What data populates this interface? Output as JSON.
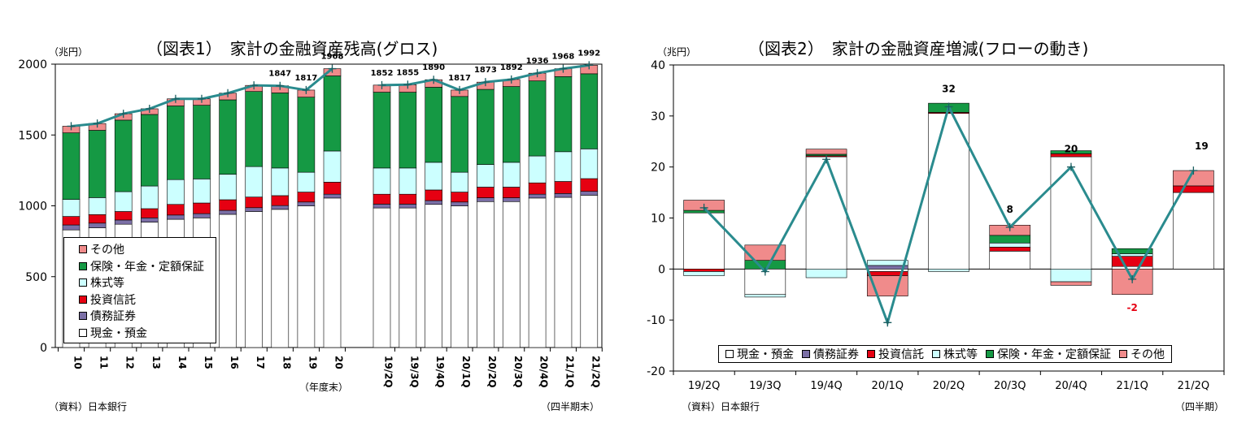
{
  "colors": {
    "cash": "#ffffff",
    "bonds": "#7b6fa6",
    "trusts": "#e60012",
    "stocks": "#ccffff",
    "insurance": "#159944",
    "other": "#f08b8b",
    "line": "#2a8b8e"
  },
  "chart_data": [
    {
      "type": "bar",
      "title": "（図表1）　家計の金融資産残高(グロス)",
      "unit_label": "（兆円）",
      "ylim": [
        0,
        2000
      ],
      "yticks": [
        "0",
        "500",
        "1000",
        "1500",
        "2000"
      ],
      "group_labels": [
        "（年度末）",
        "（四半期末）"
      ],
      "source": "（資料）日本銀行",
      "legend": [
        "その他",
        "保険・年金・定額保証",
        "株式等",
        "投資信託",
        "債務証券",
        "現金・預金"
      ],
      "legend_position": "bottom-left",
      "categories": [
        "10",
        "11",
        "12",
        "13",
        "14",
        "15",
        "16",
        "17",
        "18",
        "19",
        "20",
        "19/2Q",
        "19/3Q",
        "19/4Q",
        "20/1Q",
        "20/2Q",
        "20/3Q",
        "20/4Q",
        "21/1Q",
        "21/2Q"
      ],
      "series": [
        {
          "name": "現金・預金",
          "key": "cash",
          "values": [
            830,
            845,
            870,
            885,
            905,
            915,
            940,
            960,
            975,
            1000,
            1055,
            985,
            985,
            1010,
            1000,
            1030,
            1030,
            1055,
            1060,
            1075
          ]
        },
        {
          "name": "債務証券",
          "key": "bonds",
          "values": [
            35,
            33,
            30,
            30,
            30,
            30,
            28,
            27,
            27,
            27,
            27,
            27,
            27,
            27,
            27,
            27,
            27,
            27,
            27,
            27
          ]
        },
        {
          "name": "投資信託",
          "key": "trusts",
          "values": [
            60,
            60,
            60,
            65,
            75,
            75,
            75,
            75,
            70,
            70,
            85,
            70,
            70,
            75,
            70,
            75,
            75,
            80,
            85,
            90
          ]
        },
        {
          "name": "株式等",
          "key": "stocks",
          "values": [
            120,
            120,
            140,
            160,
            175,
            170,
            180,
            215,
            195,
            140,
            220,
            185,
            185,
            195,
            140,
            160,
            175,
            190,
            210,
            210
          ]
        },
        {
          "name": "保険・年金・定額保証",
          "key": "insurance",
          "values": [
            470,
            475,
            505,
            505,
            520,
            520,
            525,
            530,
            530,
            530,
            530,
            535,
            535,
            530,
            535,
            530,
            535,
            530,
            530,
            530
          ]
        },
        {
          "name": "その他",
          "key": "other",
          "values": [
            47,
            48,
            45,
            40,
            50,
            45,
            47,
            43,
            50,
            50,
            51,
            50,
            53,
            53,
            45,
            51,
            50,
            54,
            56,
            60
          ]
        }
      ],
      "line_totals": [
        1562,
        1581,
        1650,
        1685,
        1755,
        1755,
        1795,
        1850,
        1847,
        1817,
        1968,
        1852,
        1855,
        1890,
        1817,
        1873,
        1892,
        1936,
        1968,
        1992
      ],
      "data_labels": {
        "8": "1847",
        "9": "1817",
        "10": "1968",
        "11": "1852",
        "12": "1855",
        "13": "1890",
        "14": "1817",
        "15": "1873",
        "16": "1892",
        "17": "1936",
        "18": "1968",
        "19": "1992"
      }
    },
    {
      "type": "bar",
      "title": "（図表2）　家計の金融資産増減(フローの動き)",
      "unit_label": "（兆円）",
      "ylim": [
        -20,
        40
      ],
      "yticks": [
        "-20",
        "-10",
        "0",
        "10",
        "20",
        "30",
        "40"
      ],
      "period_label": "（四半期）",
      "source": "（資料）日本銀行",
      "legend": [
        "現金・預金",
        "債務証券",
        "投資信託",
        "株式等",
        "保険・年金・定額保証",
        "その他"
      ],
      "legend_position": "bottom",
      "categories": [
        "19/2Q",
        "19/3Q",
        "19/4Q",
        "20/1Q",
        "20/2Q",
        "20/3Q",
        "20/4Q",
        "21/1Q",
        "21/2Q"
      ],
      "series": [
        {
          "name": "現金・預金",
          "key": "cash",
          "values": [
            11,
            -5,
            22,
            -0.5,
            30.5,
            3.5,
            22,
            0.5,
            15
          ]
        },
        {
          "name": "債務証券",
          "key": "bonds",
          "values": [
            0,
            0,
            0,
            0.7,
            0,
            0,
            0,
            0,
            0
          ]
        },
        {
          "name": "投資信託",
          "key": "trusts",
          "values": [
            -0.5,
            0,
            0.2,
            -0.8,
            0.2,
            0.8,
            0.6,
            2,
            1.3
          ]
        },
        {
          "name": "株式等",
          "key": "stocks",
          "values": [
            -0.8,
            -0.5,
            -1.7,
            1,
            -0.5,
            0.8,
            -2.5,
            0.5,
            0
          ]
        },
        {
          "name": "保険・年金・定額保証",
          "key": "insurance",
          "values": [
            0.5,
            1.7,
            0.3,
            0,
            1.8,
            1.5,
            0.6,
            1,
            0
          ]
        },
        {
          "name": "その他",
          "key": "other",
          "values": [
            2,
            3,
            1,
            -4,
            0,
            2,
            -0.7,
            -5,
            3
          ]
        }
      ],
      "line_totals": [
        12,
        -0.5,
        21.5,
        -10.5,
        31.8,
        8.2,
        20,
        -2,
        19.3
      ],
      "data_labels": {
        "4": "32",
        "5": "8",
        "6": "20",
        "7": "-2",
        "8": "19"
      }
    }
  ]
}
